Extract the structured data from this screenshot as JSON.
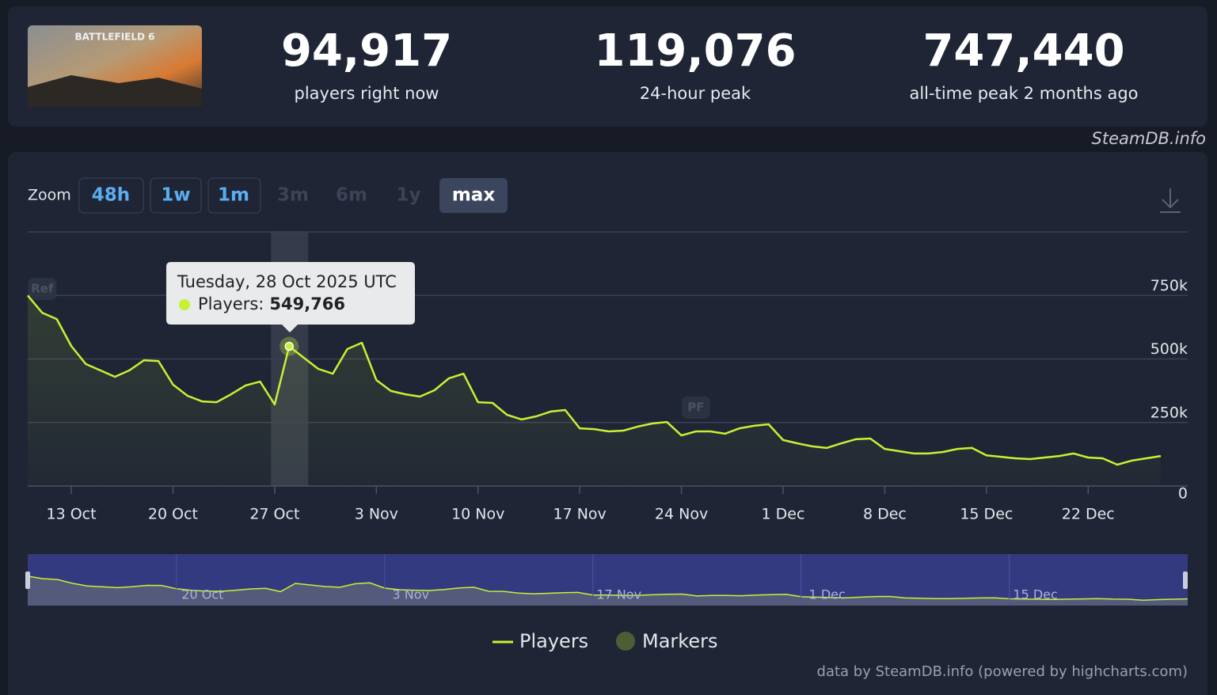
{
  "header": {
    "game_art_title": "BATTLEFIELD 6",
    "stats": [
      {
        "value": "94,917",
        "label": "players right now"
      },
      {
        "value": "119,076",
        "label": "24-hour peak"
      },
      {
        "value": "747,440",
        "label": "all-time peak 2 months ago"
      }
    ]
  },
  "watermark": "SteamDB.info",
  "zoom": {
    "label": "Zoom",
    "buttons": [
      "48h",
      "1w",
      "1m",
      "3m",
      "6m",
      "1y",
      "max"
    ]
  },
  "chart_data": {
    "type": "line",
    "categories": [
      null,
      null,
      null,
      "13 Oct",
      null,
      null,
      null,
      null,
      null,
      null,
      "20 Oct",
      null,
      null,
      null,
      null,
      null,
      null,
      "27 Oct",
      null,
      null,
      null,
      null,
      null,
      null,
      "3 Nov",
      null,
      null,
      null,
      null,
      null,
      null,
      "10 Nov",
      null,
      null,
      null,
      null,
      null,
      null,
      "17 Nov",
      null,
      null,
      null,
      null,
      null,
      null,
      "24 Nov",
      null,
      null,
      null,
      null,
      null,
      null,
      "1 Dec",
      null,
      null,
      null,
      null,
      null,
      null,
      "8 Dec",
      null,
      null,
      null,
      null,
      null,
      null,
      "15 Dec",
      null,
      null,
      null,
      null,
      null,
      null,
      "22 Dec",
      null,
      null,
      null,
      null,
      null
    ],
    "series": [
      {
        "name": "Players",
        "color": "#c8f133",
        "values": [
          750000,
          682000,
          657000,
          551000,
          480000,
          455000,
          430000,
          455000,
          495000,
          492000,
          399000,
          355000,
          333000,
          330000,
          361000,
          396000,
          411000,
          321000,
          549766,
          505000,
          461000,
          442000,
          539000,
          564000,
          417000,
          374000,
          361000,
          352000,
          377000,
          424000,
          442000,
          330000,
          327000,
          280000,
          262000,
          274000,
          293000,
          299000,
          227000,
          224000,
          215000,
          218000,
          234000,
          246000,
          252000,
          199000,
          215000,
          215000,
          206000,
          227000,
          237000,
          243000,
          181000,
          168000,
          156000,
          150000,
          168000,
          184000,
          187000,
          146000,
          137000,
          128000,
          128000,
          134000,
          146000,
          150000,
          121000,
          115000,
          109000,
          106000,
          112000,
          118000,
          128000,
          112000,
          109000,
          84000,
          100000,
          109000,
          118000
        ],
        "value_labels": [
          null,
          null,
          null,
          null,
          null,
          null,
          null,
          null,
          null,
          null,
          null,
          null,
          null,
          null,
          null,
          null,
          null,
          null,
          "549,766",
          null,
          null,
          null,
          null,
          null,
          null,
          null,
          null,
          null,
          null,
          null,
          null,
          null,
          null,
          null,
          null,
          null,
          null,
          null,
          null,
          null,
          null,
          null,
          null,
          null,
          null,
          null,
          null,
          null,
          null,
          null,
          null,
          null,
          null,
          null,
          null,
          null,
          null,
          null,
          null,
          null,
          null,
          null,
          null,
          null,
          null,
          null,
          null,
          null,
          null,
          null,
          null,
          null,
          null,
          null,
          null,
          null,
          null,
          null,
          null
        ]
      }
    ],
    "ylim": [
      0,
      1000000
    ],
    "yticks": [
      0,
      {
        "value": 250000,
        "label": "250k"
      },
      {
        "value": 500000,
        "label": "500k"
      },
      {
        "value": 750000,
        "label": "750k"
      }
    ],
    "grid": true,
    "legend": {
      "position": "bottom",
      "markers_label": "Markers"
    },
    "annotations": [
      {
        "text": "Ref",
        "index": 1
      },
      {
        "text": "PF",
        "index": 46
      }
    ],
    "tooltip": {
      "index": 18,
      "title": "Tuesday, 28 Oct 2025 UTC",
      "series_label": "Players:"
    },
    "navigator_labels": [
      "20 Oct",
      "3 Nov",
      "17 Nov",
      "1 Dec",
      "15 Dec"
    ],
    "credits": "data by SteamDB.info (powered by highcharts.com)"
  }
}
